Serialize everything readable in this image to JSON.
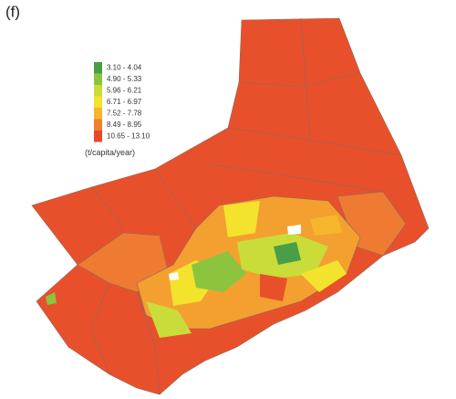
{
  "panel_label": "(f)",
  "legend": {
    "items": [
      {
        "label": "3.10 - 4.04",
        "color": "#4a9e48"
      },
      {
        "label": "4.90 - 5.33",
        "color": "#8cc43e"
      },
      {
        "label": "5.96 - 6.21",
        "color": "#c9dc3a"
      },
      {
        "label": "6.71 - 6.97",
        "color": "#f3e32c"
      },
      {
        "label": "7.52 - 7.78",
        "color": "#f5b62c"
      },
      {
        "label": "8.49 - 8.95",
        "color": "#f0802e"
      },
      {
        "label": "10.65 - 13.10",
        "color": "#e64a2a"
      }
    ],
    "unit": "(t/capita/year)"
  }
}
